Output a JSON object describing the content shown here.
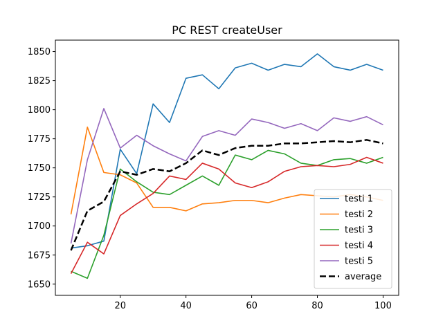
{
  "chart_data": {
    "type": "line",
    "title": "PC REST createUser",
    "xlabel": "",
    "ylabel": "",
    "xlim": [
      0.25,
      104.75
    ],
    "ylim": [
      1640.35,
      1859.85
    ],
    "xticks": [
      20,
      40,
      60,
      80,
      100
    ],
    "yticks": [
      1650,
      1675,
      1700,
      1725,
      1750,
      1775,
      1800,
      1825,
      1850
    ],
    "grid": false,
    "legend_position": "lower right",
    "x": [
      5,
      10,
      15,
      20,
      25,
      30,
      35,
      40,
      45,
      50,
      55,
      60,
      65,
      70,
      75,
      80,
      85,
      90,
      95,
      100
    ],
    "series": [
      {
        "name": "testi 1",
        "color": "#1f77b4",
        "dashed": false,
        "values": [
          1681,
          1683,
          1687,
          1766,
          1745,
          1805,
          1789,
          1827,
          1830,
          1818,
          1836,
          1840,
          1834,
          1839,
          1837,
          1848,
          1837,
          1834,
          1839,
          1834
        ]
      },
      {
        "name": "testi 2",
        "color": "#ff7f0e",
        "dashed": false,
        "values": [
          1710,
          1785,
          1746,
          1744,
          1737,
          1716,
          1716,
          1713,
          1719,
          1720,
          1722,
          1722,
          1720,
          1724,
          1727,
          1726,
          1725,
          1727,
          1725,
          1722
        ]
      },
      {
        "name": "testi 3",
        "color": "#2ca02c",
        "dashed": false,
        "values": [
          1661,
          1655,
          1692,
          1749,
          1738,
          1729,
          1727,
          1735,
          1743,
          1735,
          1761,
          1757,
          1765,
          1762,
          1754,
          1752,
          1757,
          1758,
          1754,
          1759
        ]
      },
      {
        "name": "testi 4",
        "color": "#d62728",
        "dashed": false,
        "values": [
          1659,
          1686,
          1676,
          1709,
          1719,
          1728,
          1743,
          1740,
          1754,
          1749,
          1737,
          1733,
          1738,
          1747,
          1751,
          1752,
          1751,
          1753,
          1759,
          1754
        ]
      },
      {
        "name": "testi 5",
        "color": "#9467bd",
        "dashed": false,
        "values": [
          1685,
          1757,
          1801,
          1767,
          1778,
          1769,
          1762,
          1756,
          1777,
          1782,
          1778,
          1792,
          1789,
          1784,
          1788,
          1782,
          1793,
          1790,
          1794,
          1787
        ]
      },
      {
        "name": "average",
        "color": "#000000",
        "dashed": true,
        "values": [
          1679,
          1713,
          1721,
          1747,
          1744,
          1749,
          1747,
          1754,
          1765,
          1761,
          1767,
          1769,
          1769,
          1771,
          1771,
          1772,
          1773,
          1772,
          1774,
          1771
        ]
      }
    ]
  }
}
